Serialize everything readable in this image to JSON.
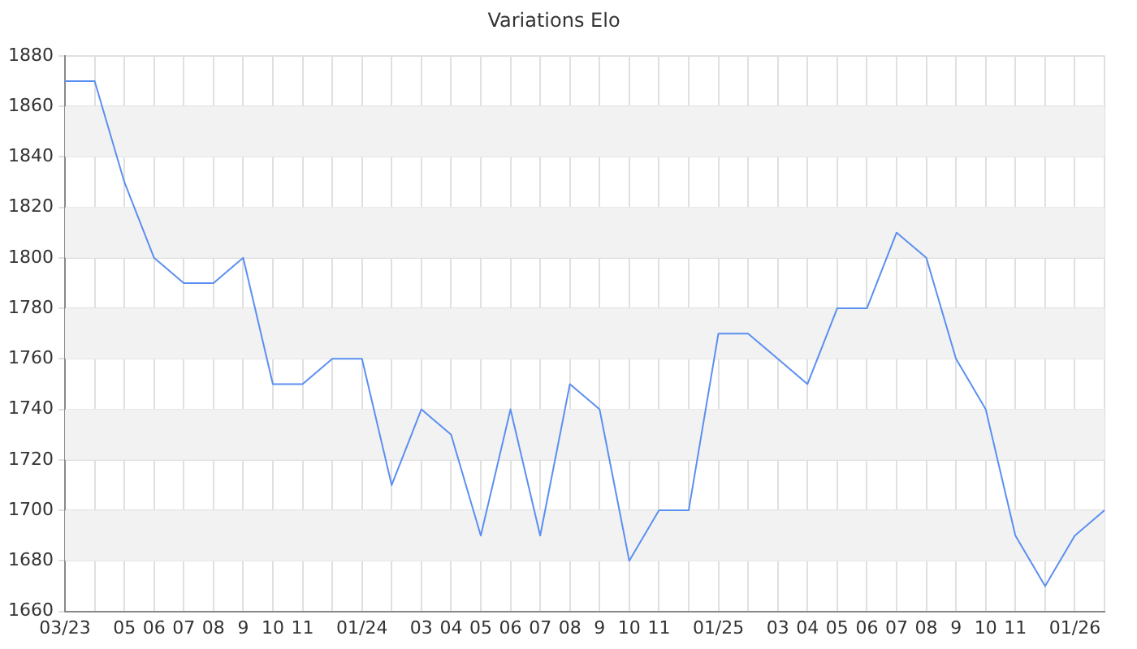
{
  "chart_data": {
    "type": "line",
    "title": "Variations Elo",
    "categories": [
      "03/23",
      null,
      "05",
      "06",
      "07",
      "08",
      "9",
      "10",
      "11",
      null,
      "01/24",
      null,
      "03",
      "04",
      "05",
      "06",
      "07",
      "08",
      "9",
      "10",
      "11",
      null,
      "01/25",
      null,
      "03",
      "04",
      "05",
      "06",
      "07",
      "08",
      "9",
      "10",
      "11",
      null,
      "01/26",
      null
    ],
    "series": [
      {
        "color": "#5b8ff0",
        "values": [
          1870,
          1870,
          1830,
          1800,
          1790,
          1790,
          1800,
          1750,
          1750,
          1760,
          1760,
          1710,
          1740,
          1730,
          1690,
          1740,
          1690,
          1750,
          1740,
          1680,
          1700,
          1700,
          1770,
          1770,
          1760,
          1750,
          1780,
          1780,
          1810,
          1800,
          1760,
          1740,
          1690,
          1670,
          1690,
          1700
        ]
      }
    ],
    "ylim": [
      1660,
      1880
    ],
    "yticks": [
      1660,
      1680,
      1700,
      1720,
      1740,
      1760,
      1780,
      1800,
      1820,
      1840,
      1860,
      1880
    ],
    "grid": true,
    "legend": false,
    "marker": "none",
    "line_style": "solid"
  }
}
